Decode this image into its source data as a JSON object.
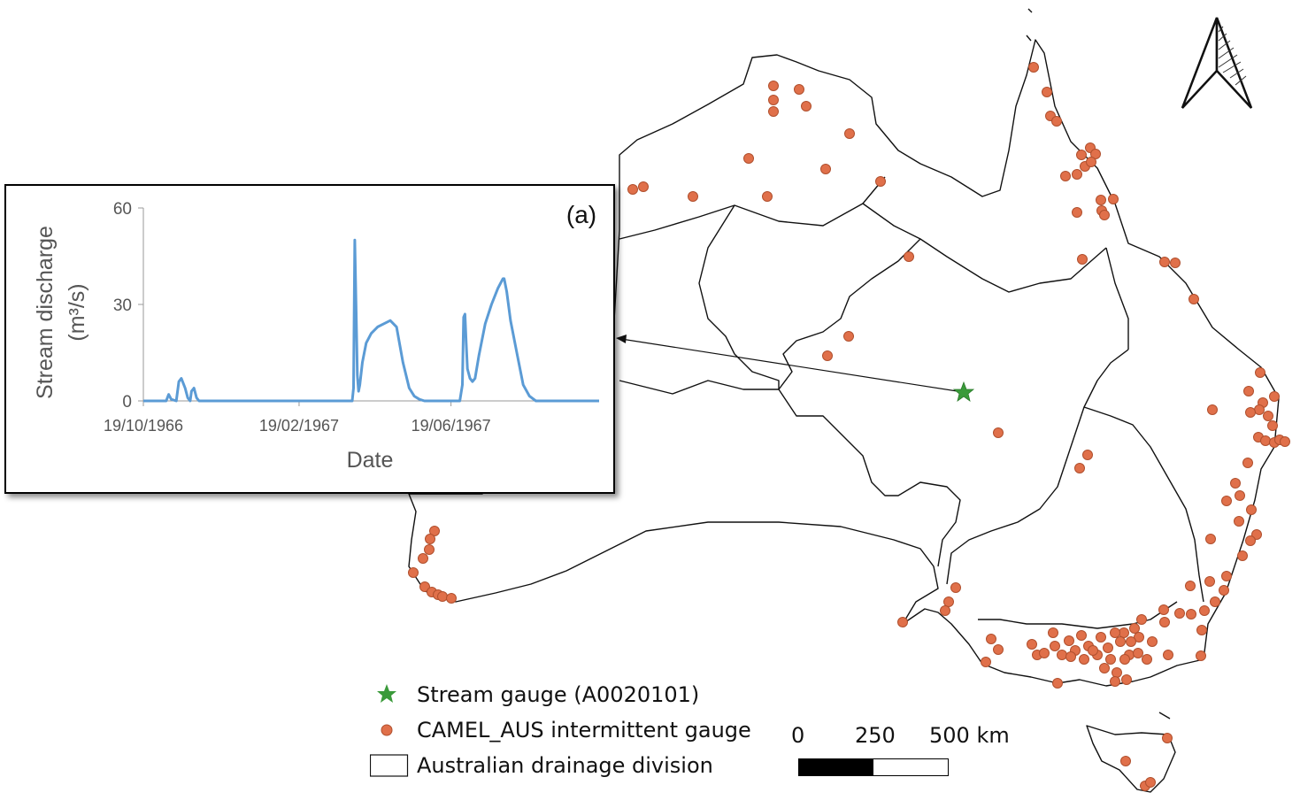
{
  "legend": {
    "stream_gauge": "Stream gauge (A0020101)",
    "intermittent_gauge": "CAMEL_AUS intermittent gauge",
    "drainage_division": "Australian drainage division"
  },
  "scale_bar": {
    "label_0": "0",
    "label_250": "250",
    "label_500": "500 km"
  },
  "north_arrow": {
    "icon": "north-arrow-icon"
  },
  "colors": {
    "gauge_dot": "#E0704A",
    "gauge_dot_edge": "#B0502E",
    "star": "#3A9A3A",
    "series": "#5B9BD5",
    "outline": "#111111"
  },
  "chart_data": {
    "type": "line",
    "panel_label": "(a)",
    "xlabel": "Date",
    "ylabel_line1": "Stream discharge",
    "ylabel_unit": "(m³/s)",
    "ylim": [
      0,
      60
    ],
    "yticks": [
      "0",
      "30",
      "60"
    ],
    "xticks": [
      "19/10/1966",
      "19/02/1967",
      "19/06/1967"
    ],
    "grid": false,
    "series": [
      {
        "days": [
          0,
          18,
          20,
          22,
          26,
          28,
          30,
          33,
          35,
          37,
          38,
          40,
          42,
          44,
          60,
          90,
          120,
          150,
          160,
          165,
          166,
          167,
          168,
          169,
          170,
          171,
          173,
          176,
          180,
          185,
          190,
          195,
          200,
          205,
          210,
          214,
          218,
          222,
          226,
          230,
          235,
          240,
          245,
          250,
          252,
          253,
          254,
          255,
          256,
          258,
          260,
          262,
          265,
          270,
          275,
          280,
          284,
          285,
          287,
          290,
          295,
          300,
          305,
          310,
          320,
          340,
          350,
          360
        ],
        "values": [
          0,
          0,
          2,
          0.5,
          0,
          6,
          7,
          4,
          1,
          0,
          3,
          4,
          1,
          0,
          0,
          0,
          0,
          0,
          0,
          0,
          4,
          50,
          30,
          8,
          3,
          5,
          12,
          18,
          21,
          23,
          24,
          25,
          23,
          12,
          4,
          1.5,
          0.5,
          0,
          0,
          0,
          0,
          0,
          0,
          0,
          5,
          26,
          27,
          18,
          10,
          7,
          6,
          7,
          14,
          24,
          30,
          35,
          38,
          38,
          34,
          25,
          15,
          5,
          1.5,
          0,
          0,
          0,
          0,
          0
        ]
      }
    ]
  }
}
